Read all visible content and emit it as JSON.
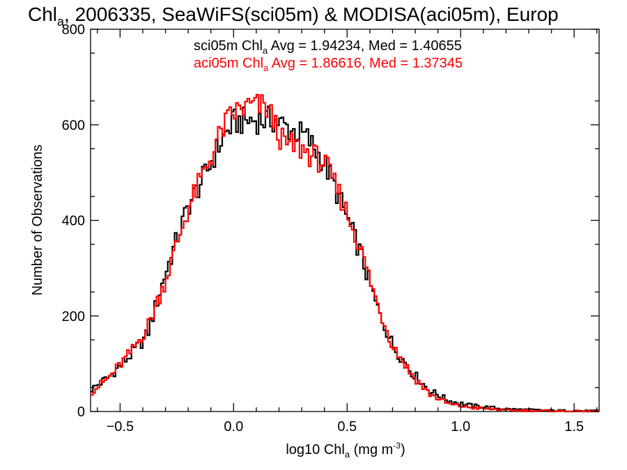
{
  "chart_data": {
    "type": "histogram",
    "title": {
      "pre": "Chl",
      "sub": "a",
      "post": ", 2006335, SeaWiFS(sci05m) & MODISA(aci05m), Europ"
    },
    "xlabel": {
      "pre": "log10 Chl",
      "sub": "a",
      "mid": " (mg m",
      "sup": "-3",
      "post": ")"
    },
    "ylabel": "Number of Observations",
    "xlim": [
      -0.63,
      1.61
    ],
    "ylim": [
      0,
      800
    ],
    "xticks": [
      -0.5,
      0.0,
      0.5,
      1.0,
      1.5
    ],
    "xtick_labels": [
      "−0.5",
      "0.0",
      "0.5",
      "1.0",
      "1.5"
    ],
    "yticks": [
      0,
      200,
      400,
      600,
      800
    ],
    "ytick_labels": [
      "0",
      "200",
      "400",
      "600",
      "800"
    ],
    "grid": false,
    "bin_width": 0.01,
    "series": [
      {
        "name": "sci05m",
        "color": "#000000",
        "stats_label": {
          "pre": "sci05m Chl",
          "sub": "a",
          "post": " Avg = 1.94234, Med = 1.40655"
        },
        "profile": [
          [
            -0.63,
            45
          ],
          [
            -0.55,
            72
          ],
          [
            -0.45,
            120
          ],
          [
            -0.38,
            160
          ],
          [
            -0.3,
            290
          ],
          [
            -0.2,
            430
          ],
          [
            -0.12,
            500
          ],
          [
            -0.05,
            570
          ],
          [
            0.0,
            605
          ],
          [
            0.08,
            610
          ],
          [
            0.18,
            610
          ],
          [
            0.25,
            590
          ],
          [
            0.32,
            575
          ],
          [
            0.4,
            520
          ],
          [
            0.48,
            430
          ],
          [
            0.56,
            330
          ],
          [
            0.63,
            220
          ],
          [
            0.7,
            140
          ],
          [
            0.78,
            85
          ],
          [
            0.86,
            45
          ],
          [
            0.95,
            22
          ],
          [
            1.05,
            12
          ],
          [
            1.2,
            5
          ],
          [
            1.4,
            2
          ],
          [
            1.61,
            1
          ]
        ]
      },
      {
        "name": "aci05m",
        "color": "#ff0000",
        "stats_label": {
          "pre": "aci05m Chl",
          "sub": "a",
          "post": " Avg = 1.86616, Med = 1.37345"
        },
        "profile": [
          [
            -0.63,
            40
          ],
          [
            -0.55,
            70
          ],
          [
            -0.45,
            125
          ],
          [
            -0.38,
            175
          ],
          [
            -0.3,
            275
          ],
          [
            -0.2,
            425
          ],
          [
            -0.12,
            510
          ],
          [
            -0.05,
            590
          ],
          [
            0.0,
            625
          ],
          [
            0.08,
            640
          ],
          [
            0.15,
            635
          ],
          [
            0.22,
            560
          ],
          [
            0.3,
            550
          ],
          [
            0.4,
            520
          ],
          [
            0.48,
            440
          ],
          [
            0.56,
            340
          ],
          [
            0.63,
            230
          ],
          [
            0.7,
            140
          ],
          [
            0.78,
            80
          ],
          [
            0.86,
            38
          ],
          [
            0.95,
            15
          ],
          [
            1.05,
            8
          ],
          [
            1.2,
            3
          ],
          [
            1.4,
            1
          ],
          [
            1.61,
            0
          ]
        ]
      }
    ]
  }
}
